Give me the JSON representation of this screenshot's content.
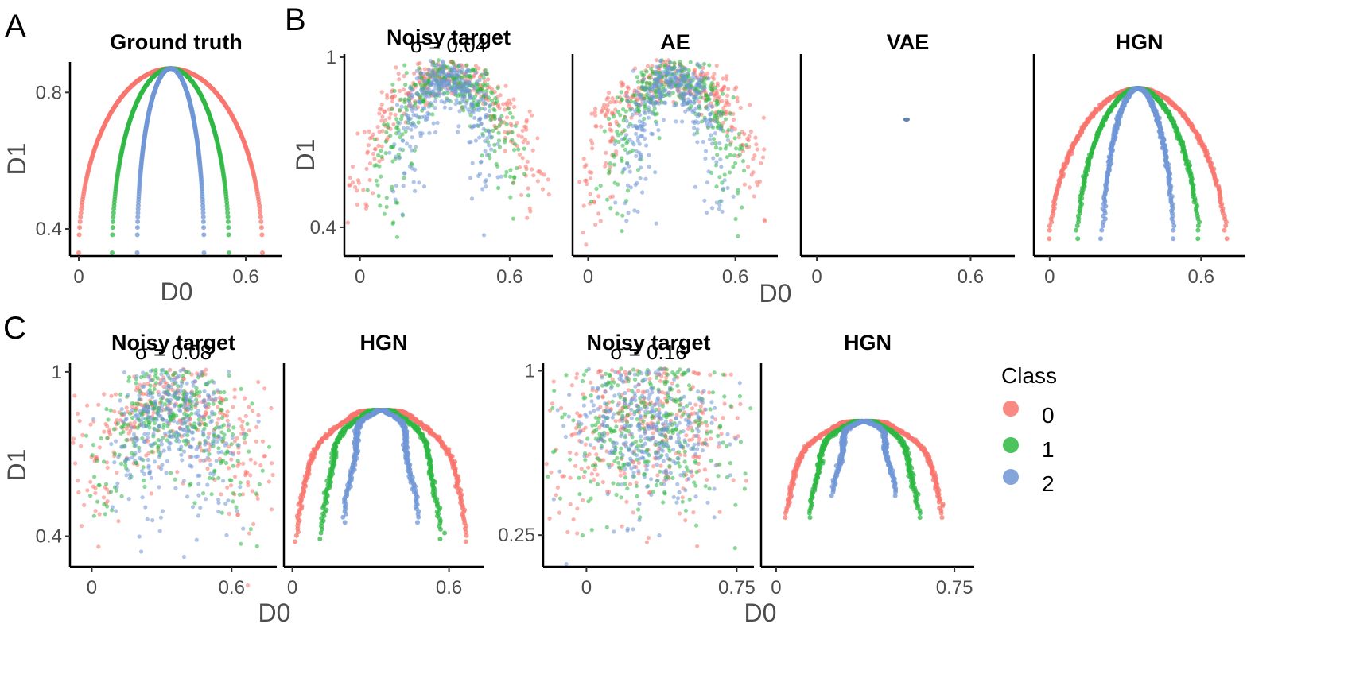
{
  "colors": {
    "class0": "#F8766D",
    "class1": "#2EB843",
    "class2": "#6F95D6",
    "axis": "#000000",
    "text": "#4d4d4d"
  },
  "panel_letters": [
    "A",
    "B",
    "C"
  ],
  "legend": {
    "title": "Class",
    "entries": [
      "0",
      "1",
      "2"
    ]
  },
  "chart_data": [
    {
      "id": "a-ground-truth",
      "type": "scatter",
      "title": "Ground truth",
      "subtitle": "",
      "noise": 0,
      "model": "truth",
      "xlabel": "D0",
      "ylabel": "D1",
      "xlim": [
        -0.02,
        0.72
      ],
      "ylim": [
        0.33,
        0.88
      ],
      "xticks": [
        {
          "v": 0,
          "label": "0"
        },
        {
          "v": 0.6,
          "label": "0.6"
        }
      ],
      "yticks": [
        {
          "v": 0.8,
          "label": "0.8"
        },
        {
          "v": 0.4,
          "label": "0.4"
        }
      ],
      "series": [
        {
          "name": "0",
          "center": 0.33,
          "halfwidth": 0.33,
          "peak": 0.87,
          "floor": 0.33
        },
        {
          "name": "1",
          "center": 0.33,
          "halfwidth": 0.21,
          "peak": 0.87,
          "floor": 0.33
        },
        {
          "name": "2",
          "center": 0.33,
          "halfwidth": 0.12,
          "peak": 0.87,
          "floor": 0.33
        }
      ]
    },
    {
      "id": "b-noisy",
      "type": "scatter",
      "title": "Noisy target",
      "subtitle": "σ = 0.04",
      "noise": 0.04,
      "model": "noisy",
      "xlabel": "",
      "ylabel": "D1",
      "xlim": [
        -0.05,
        0.76
      ],
      "ylim": [
        0.31,
        1.0
      ],
      "xticks": [
        {
          "v": 0,
          "label": "0"
        },
        {
          "v": 0.6,
          "label": "0.6"
        }
      ],
      "yticks": [
        {
          "v": 1.0,
          "label": "1"
        },
        {
          "v": 0.4,
          "label": "0.4"
        }
      ],
      "series": [
        {
          "name": "0",
          "center": 0.35,
          "halfwidth": 0.37,
          "peak": 0.93,
          "floor": 0.38
        },
        {
          "name": "1",
          "center": 0.35,
          "halfwidth": 0.26,
          "peak": 0.93,
          "floor": 0.38
        },
        {
          "name": "2",
          "center": 0.35,
          "halfwidth": 0.18,
          "peak": 0.93,
          "floor": 0.38
        }
      ]
    },
    {
      "id": "b-ae",
      "type": "scatter",
      "title": "AE",
      "subtitle": "",
      "noise": 0.04,
      "model": "noisy",
      "xlabel": "",
      "ylabel": "",
      "xlim": [
        -0.05,
        0.76
      ],
      "ylim": [
        0.31,
        1.0
      ],
      "xticks": [
        {
          "v": 0,
          "label": "0"
        },
        {
          "v": 0.6,
          "label": "0.6"
        }
      ],
      "yticks": [],
      "series": [
        {
          "name": "0",
          "center": 0.35,
          "halfwidth": 0.37,
          "peak": 0.93,
          "floor": 0.38
        },
        {
          "name": "1",
          "center": 0.35,
          "halfwidth": 0.26,
          "peak": 0.93,
          "floor": 0.38
        },
        {
          "name": "2",
          "center": 0.35,
          "halfwidth": 0.18,
          "peak": 0.93,
          "floor": 0.38
        }
      ]
    },
    {
      "id": "b-vae",
      "type": "scatter",
      "title": "VAE",
      "subtitle": "",
      "noise": 0,
      "model": "collapsed",
      "xlabel": "D0",
      "ylabel": "",
      "xlim": [
        -0.05,
        0.76
      ],
      "ylim": [
        0.31,
        1.0
      ],
      "xticks": [
        {
          "v": 0,
          "label": "0"
        },
        {
          "v": 0.6,
          "label": "0.6"
        }
      ],
      "yticks": [],
      "series": [
        {
          "name": "0",
          "x": 0.35,
          "y": 0.78
        },
        {
          "name": "1",
          "x": 0.35,
          "y": 0.78
        },
        {
          "name": "2",
          "x": 0.35,
          "y": 0.78
        }
      ]
    },
    {
      "id": "b-hgn",
      "type": "scatter",
      "title": "HGN",
      "subtitle": "",
      "noise": 0,
      "model": "hgn",
      "xlabel": "",
      "ylabel": "",
      "xlim": [
        -0.05,
        0.76
      ],
      "ylim": [
        0.31,
        1.0
      ],
      "xticks": [
        {
          "v": 0,
          "label": "0"
        },
        {
          "v": 0.6,
          "label": "0.6"
        }
      ],
      "yticks": [],
      "series": [
        {
          "name": "0",
          "center": 0.35,
          "halfwidth": 0.35,
          "peak": 0.89,
          "floor": 0.36
        },
        {
          "name": "1",
          "center": 0.35,
          "halfwidth": 0.24,
          "peak": 0.89,
          "floor": 0.36
        },
        {
          "name": "2",
          "center": 0.35,
          "halfwidth": 0.14,
          "peak": 0.89,
          "floor": 0.36
        }
      ]
    },
    {
      "id": "c-noisy-08",
      "type": "scatter",
      "title": "Noisy target",
      "subtitle": "σ = 0.08",
      "noise": 0.08,
      "model": "noisy",
      "xlabel": "",
      "ylabel": "D1",
      "xlim": [
        -0.08,
        0.78
      ],
      "ylim": [
        0.3,
        1.02
      ],
      "xticks": [
        {
          "v": 0,
          "label": "0"
        },
        {
          "v": 0.6,
          "label": "0.6"
        }
      ],
      "yticks": [
        {
          "v": 1.0,
          "label": "1"
        },
        {
          "v": 0.4,
          "label": "0.4"
        }
      ],
      "series": [
        {
          "name": "0",
          "center": 0.35,
          "halfwidth": 0.37,
          "peak": 0.9,
          "floor": 0.38
        },
        {
          "name": "1",
          "center": 0.35,
          "halfwidth": 0.26,
          "peak": 0.9,
          "floor": 0.38
        },
        {
          "name": "2",
          "center": 0.35,
          "halfwidth": 0.17,
          "peak": 0.9,
          "floor": 0.38
        }
      ]
    },
    {
      "id": "c-hgn-08",
      "type": "scatter",
      "title": "HGN",
      "subtitle": "",
      "noise": 0,
      "model": "hgn-wavy",
      "xlabel": "D0",
      "ylabel": "",
      "xlim": [
        -0.02,
        0.72
      ],
      "ylim": [
        0.3,
        1.02
      ],
      "xticks": [
        {
          "v": 0,
          "label": "0"
        },
        {
          "v": 0.6,
          "label": "0.6"
        }
      ],
      "yticks": [],
      "series": [
        {
          "name": "0",
          "center": 0.34,
          "halfwidth": 0.34,
          "peak": 0.86,
          "floor": 0.38
        },
        {
          "name": "1",
          "center": 0.34,
          "halfwidth": 0.24,
          "peak": 0.86,
          "floor": 0.39
        },
        {
          "name": "2",
          "center": 0.34,
          "halfwidth": 0.14,
          "peak": 0.86,
          "floor": 0.45
        }
      ]
    },
    {
      "id": "c-noisy-16",
      "type": "scatter",
      "title": "Noisy target",
      "subtitle": "σ = 0.16",
      "noise": 0.16,
      "model": "noisy",
      "xlabel": "",
      "ylabel": "",
      "xlim": [
        -0.2,
        0.82
      ],
      "ylim": [
        0.12,
        1.02
      ],
      "xticks": [
        {
          "v": 0,
          "label": "0"
        },
        {
          "v": 0.75,
          "label": "0.75"
        }
      ],
      "yticks": [
        {
          "v": 1.0,
          "label": "1"
        },
        {
          "v": 0.25,
          "label": "0.25"
        }
      ],
      "series": [
        {
          "name": "0",
          "center": 0.3,
          "halfwidth": 0.37,
          "peak": 0.8,
          "floor": 0.45
        },
        {
          "name": "1",
          "center": 0.3,
          "halfwidth": 0.26,
          "peak": 0.8,
          "floor": 0.45
        },
        {
          "name": "2",
          "center": 0.3,
          "halfwidth": 0.17,
          "peak": 0.8,
          "floor": 0.45
        }
      ]
    },
    {
      "id": "c-hgn-16",
      "type": "scatter",
      "title": "HGN",
      "subtitle": "",
      "noise": 0,
      "model": "hgn-wavy",
      "xlabel": "D0",
      "ylabel": "",
      "xlim": [
        -0.05,
        0.82
      ],
      "ylim": [
        0.12,
        1.02
      ],
      "xticks": [
        {
          "v": 0,
          "label": "0"
        },
        {
          "v": 0.75,
          "label": "0.75"
        }
      ],
      "yticks": [],
      "series": [
        {
          "name": "0",
          "center": 0.37,
          "halfwidth": 0.34,
          "peak": 0.77,
          "floor": 0.33
        },
        {
          "name": "1",
          "center": 0.37,
          "halfwidth": 0.24,
          "peak": 0.77,
          "floor": 0.33
        },
        {
          "name": "2",
          "center": 0.37,
          "halfwidth": 0.13,
          "peak": 0.77,
          "floor": 0.43
        }
      ]
    }
  ]
}
